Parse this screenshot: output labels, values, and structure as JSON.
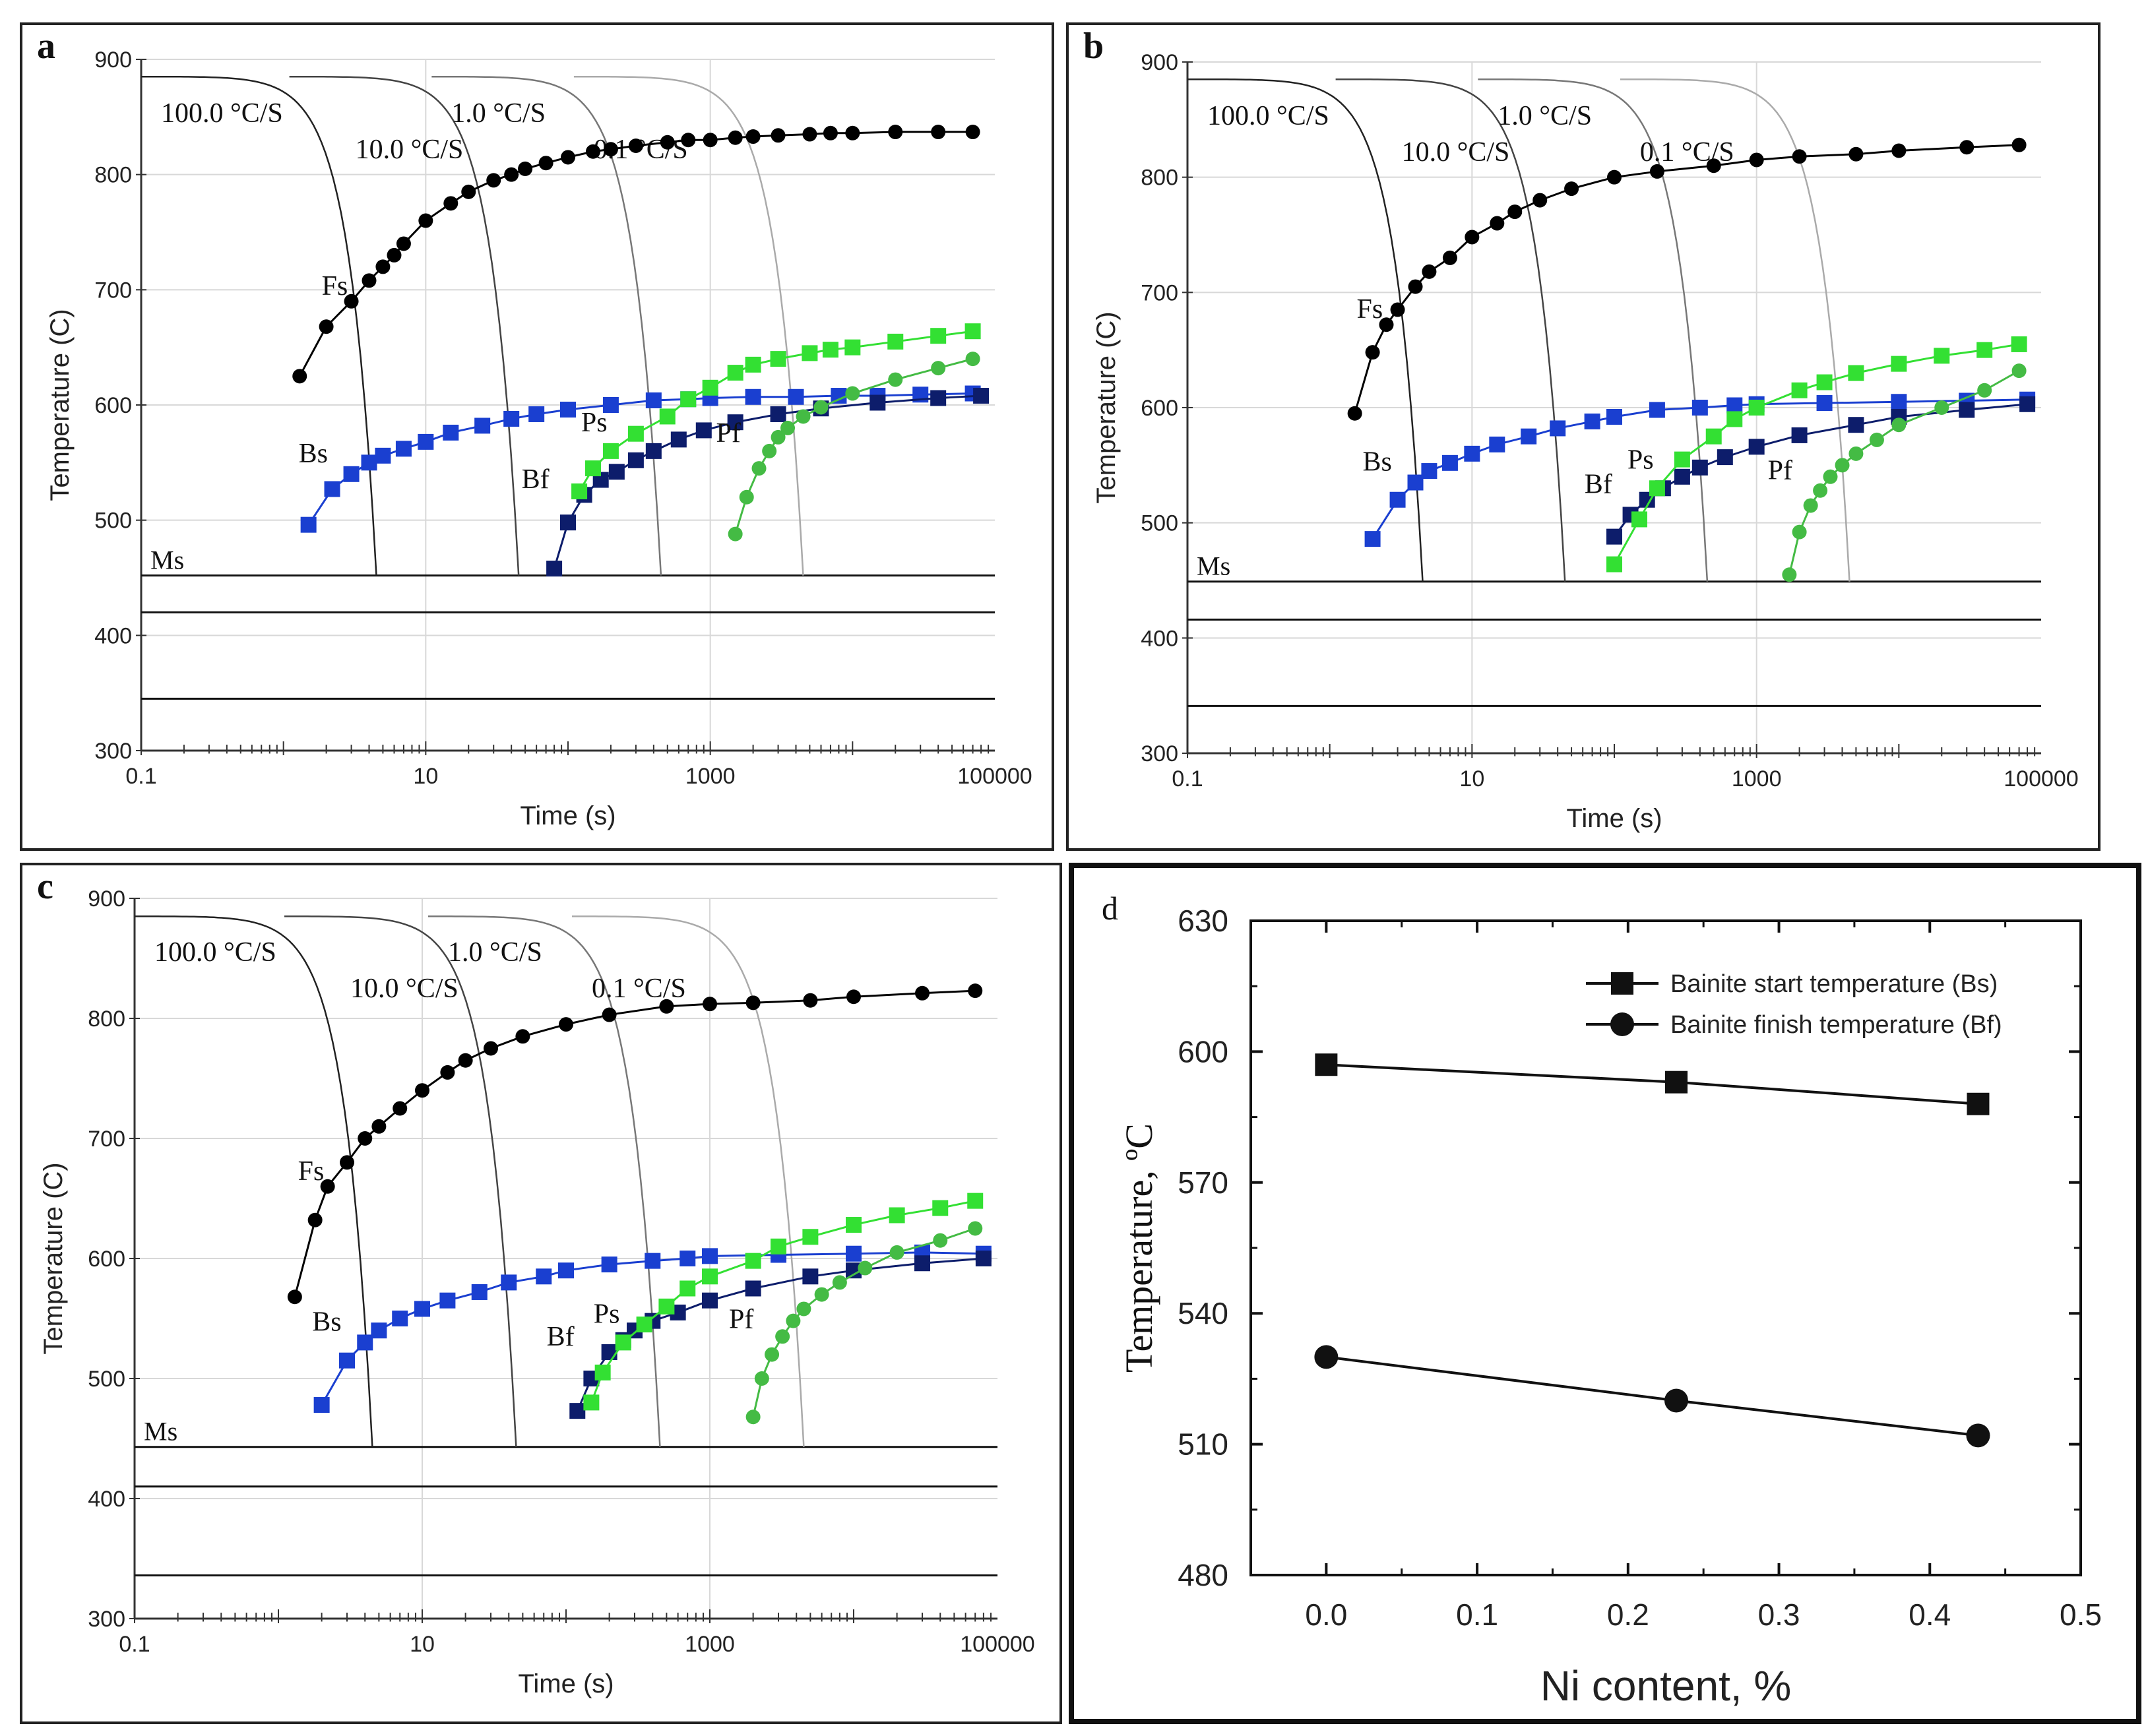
{
  "cct": {
    "xlabel": "Time (s)",
    "ylabel": "Temperature (C)",
    "xticks": [
      "0.1",
      "10",
      "1000",
      "100000"
    ],
    "yticks": [
      "300",
      "400",
      "500",
      "600",
      "700",
      "800",
      "900"
    ],
    "ms_label": "Ms",
    "curve_labels": {
      "Fs": "Fs",
      "Bs": "Bs",
      "Bf": "Bf",
      "Ps": "Ps",
      "Pf": "Pf"
    },
    "rate_labels": [
      "100.0 °C/S",
      "10.0 °C/S",
      "1.0 °C/S",
      "0.1 °C/S"
    ],
    "colors": {
      "ferrite": "#000000",
      "bs": "#1a3fd0",
      "bf": "#0d1d6b",
      "ps": "#33e033",
      "pf": "#44bb44",
      "cooling": "#333333"
    }
  },
  "chart_data": [
    {
      "type": "line",
      "panel": "a",
      "xscale": "log",
      "xlim": [
        0.1,
        100000
      ],
      "ylim": [
        300,
        900
      ],
      "ms_lines": [
        452,
        420,
        345
      ],
      "series": [
        {
          "name": "Fs",
          "x": [
            1.3,
            2,
            3,
            4,
            5,
            6,
            7,
            10,
            15,
            20,
            30,
            40,
            50,
            70,
            100,
            150,
            200,
            300,
            500,
            700,
            1000,
            1500,
            2000,
            3000,
            5000,
            7000,
            10000,
            20000,
            40000,
            70000
          ],
          "y": [
            625,
            668,
            690,
            708,
            720,
            730,
            740,
            760,
            775,
            785,
            795,
            800,
            805,
            810,
            815,
            820,
            822,
            825,
            828,
            830,
            830,
            832,
            833,
            834,
            835,
            836,
            836,
            837,
            837,
            837
          ]
        },
        {
          "name": "Bs",
          "x": [
            1.5,
            2.2,
            3,
            4,
            5,
            7,
            10,
            15,
            25,
            40,
            60,
            100,
            200,
            400,
            700,
            1000,
            2000,
            4000,
            8000,
            15000,
            30000,
            70000
          ],
          "y": [
            496,
            527,
            540,
            550,
            556,
            562,
            568,
            576,
            582,
            588,
            592,
            596,
            600,
            604,
            605,
            606,
            607,
            607,
            608,
            608,
            609,
            610
          ]
        },
        {
          "name": "Bf",
          "x": [
            80,
            100,
            130,
            170,
            220,
            300,
            400,
            600,
            900,
            1500,
            3000,
            6000,
            15000,
            40000,
            80000
          ],
          "y": [
            458,
            498,
            522,
            535,
            542,
            552,
            560,
            570,
            578,
            585,
            592,
            597,
            602,
            606,
            608
          ]
        },
        {
          "name": "Ps",
          "x": [
            120,
            150,
            200,
            300,
            500,
            700,
            1000,
            1500,
            2000,
            3000,
            5000,
            7000,
            10000,
            20000,
            40000,
            70000
          ],
          "y": [
            525,
            545,
            560,
            575,
            590,
            605,
            615,
            628,
            635,
            640,
            645,
            648,
            650,
            655,
            660,
            664
          ]
        },
        {
          "name": "Pf",
          "x": [
            1500,
            1800,
            2200,
            2600,
            3000,
            3500,
            4500,
            6000,
            10000,
            20000,
            40000,
            70000
          ],
          "y": [
            488,
            520,
            545,
            560,
            572,
            580,
            590,
            598,
            610,
            622,
            632,
            640
          ]
        }
      ]
    },
    {
      "type": "line",
      "panel": "b",
      "xscale": "log",
      "xlim": [
        0.1,
        100000
      ],
      "ylim": [
        300,
        900
      ],
      "ms_lines": [
        449,
        416,
        341
      ],
      "series": [
        {
          "name": "Fs",
          "x": [
            1.5,
            2,
            2.5,
            3,
            4,
            5,
            7,
            10,
            15,
            20,
            30,
            50,
            100,
            200,
            500,
            1000,
            2000,
            5000,
            10000,
            30000,
            70000
          ],
          "y": [
            595,
            648,
            672,
            685,
            705,
            718,
            730,
            748,
            760,
            770,
            780,
            790,
            800,
            805,
            810,
            815,
            818,
            820,
            823,
            826,
            828
          ]
        },
        {
          "name": "Bs",
          "x": [
            2,
            3,
            4,
            5,
            7,
            10,
            15,
            25,
            40,
            70,
            100,
            200,
            400,
            700,
            1000,
            3000,
            10000,
            30000,
            80000
          ],
          "y": [
            486,
            520,
            535,
            545,
            552,
            560,
            568,
            575,
            582,
            588,
            592,
            598,
            600,
            602,
            603,
            604,
            605,
            606,
            607
          ]
        },
        {
          "name": "Bf",
          "x": [
            100,
            130,
            170,
            220,
            300,
            400,
            600,
            1000,
            2000,
            5000,
            10000,
            30000,
            80000
          ],
          "y": [
            488,
            507,
            520,
            530,
            540,
            548,
            557,
            566,
            576,
            585,
            592,
            598,
            603
          ]
        },
        {
          "name": "Ps",
          "x": [
            100,
            150,
            200,
            300,
            500,
            700,
            1000,
            2000,
            3000,
            5000,
            10000,
            20000,
            40000,
            70000
          ],
          "y": [
            464,
            503,
            530,
            555,
            575,
            590,
            600,
            615,
            622,
            630,
            638,
            645,
            650,
            655
          ]
        },
        {
          "name": "Pf",
          "x": [
            1700,
            2000,
            2400,
            2800,
            3300,
            4000,
            5000,
            7000,
            10000,
            20000,
            40000,
            70000
          ],
          "y": [
            455,
            492,
            515,
            528,
            540,
            550,
            560,
            572,
            585,
            600,
            615,
            632
          ]
        }
      ]
    },
    {
      "type": "line",
      "panel": "c",
      "xscale": "log",
      "xlim": [
        0.1,
        100000
      ],
      "ylim": [
        300,
        900
      ],
      "ms_lines": [
        443,
        410,
        336
      ],
      "series": [
        {
          "name": "Fs",
          "x": [
            1.3,
            1.8,
            2.2,
            3,
            4,
            5,
            7,
            10,
            15,
            20,
            30,
            50,
            100,
            200,
            500,
            1000,
            2000,
            5000,
            10000,
            30000,
            70000
          ],
          "y": [
            568,
            632,
            660,
            680,
            700,
            710,
            725,
            740,
            755,
            765,
            775,
            785,
            795,
            803,
            810,
            812,
            813,
            815,
            818,
            821,
            823
          ]
        },
        {
          "name": "Bs",
          "x": [
            2,
            3,
            4,
            5,
            7,
            10,
            15,
            25,
            40,
            70,
            100,
            200,
            400,
            700,
            1000,
            3000,
            10000,
            30000,
            80000
          ],
          "y": [
            478,
            515,
            530,
            540,
            550,
            558,
            565,
            572,
            580,
            585,
            590,
            595,
            598,
            600,
            602,
            603,
            604,
            605,
            604
          ]
        },
        {
          "name": "Bf",
          "x": [
            120,
            150,
            200,
            250,
            300,
            400,
            600,
            1000,
            2000,
            5000,
            10000,
            30000,
            80000
          ],
          "y": [
            473,
            500,
            522,
            532,
            540,
            548,
            555,
            565,
            575,
            585,
            590,
            596,
            600
          ]
        },
        {
          "name": "Ps",
          "x": [
            150,
            180,
            250,
            350,
            500,
            700,
            1000,
            2000,
            3000,
            5000,
            10000,
            20000,
            40000,
            70000
          ],
          "y": [
            480,
            505,
            530,
            545,
            560,
            575,
            585,
            598,
            610,
            618,
            628,
            636,
            642,
            648
          ]
        },
        {
          "name": "Pf",
          "x": [
            2000,
            2300,
            2700,
            3200,
            3800,
            4500,
            6000,
            8000,
            12000,
            20000,
            40000,
            70000
          ],
          "y": [
            468,
            500,
            520,
            535,
            548,
            558,
            570,
            580,
            592,
            605,
            615,
            625
          ]
        }
      ]
    },
    {
      "type": "line",
      "panel": "d",
      "title": "",
      "xlabel": "Ni content, %",
      "ylabel": "Temperature, ºC",
      "xlim": [
        -0.05,
        0.5
      ],
      "ylim": [
        480,
        630
      ],
      "xticks": [
        "0.0",
        "0.1",
        "0.2",
        "0.3",
        "0.4",
        "0.5"
      ],
      "yticks": [
        "480",
        "510",
        "540",
        "570",
        "600",
        "630"
      ],
      "series": [
        {
          "name": "Bainite start temperature (Bs)",
          "marker": "square",
          "x": [
            0.0,
            0.232,
            0.432
          ],
          "y": [
            597,
            593,
            588
          ]
        },
        {
          "name": "Bainite finish temperature (Bf)",
          "marker": "circle",
          "x": [
            0.0,
            0.232,
            0.432
          ],
          "y": [
            530,
            520,
            512
          ]
        }
      ]
    }
  ],
  "panel_letters": [
    "a",
    "b",
    "c",
    "d"
  ]
}
